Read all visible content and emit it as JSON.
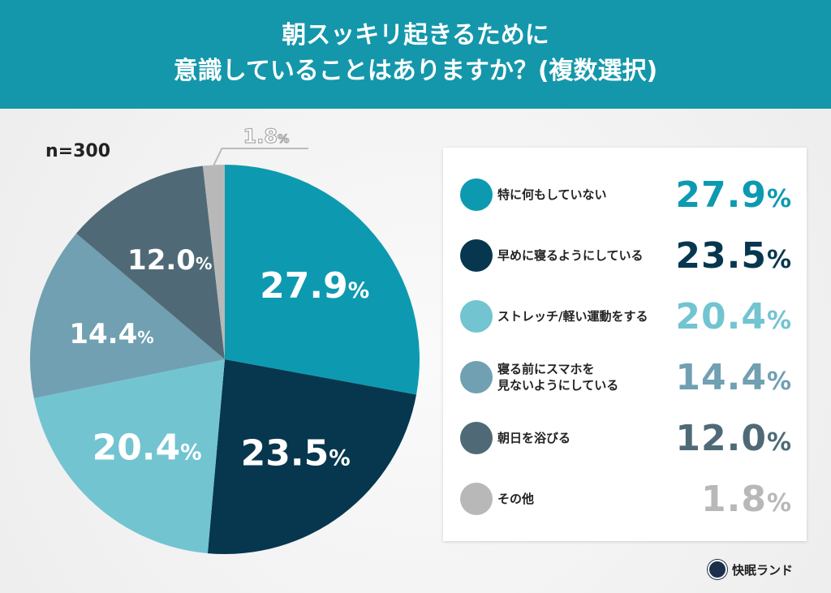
{
  "header": {
    "title_line1": "朝スッキリ起きるために",
    "title_line2": "意識していることはありますか？(複数選択)"
  },
  "sample": "n=300",
  "chart_data": {
    "type": "pie",
    "title": "朝スッキリ起きるために意識していることはありますか？(複数選択)",
    "start": "top, clockwise",
    "unit": "%",
    "legend_position": "right",
    "slices": [
      {
        "label": "特に何もしていない",
        "value": 27.9,
        "color": "#0d9ab0"
      },
      {
        "label": "早めに寝るようにしている",
        "value": 23.5,
        "color": "#06374e"
      },
      {
        "label": "ストレッチ/軽い運動をする",
        "value": 20.4,
        "color": "#72c4d1"
      },
      {
        "label": "寝る前にスマホを\n見ないようにしている",
        "value": 14.4,
        "color": "#70a0b2"
      },
      {
        "label": "朝日を浴びる",
        "value": 12.0,
        "color": "#4f6a76"
      },
      {
        "label": "その他",
        "value": 1.8,
        "color": "#b8b8b8"
      }
    ]
  },
  "logo": {
    "text": "快眠ランド"
  }
}
